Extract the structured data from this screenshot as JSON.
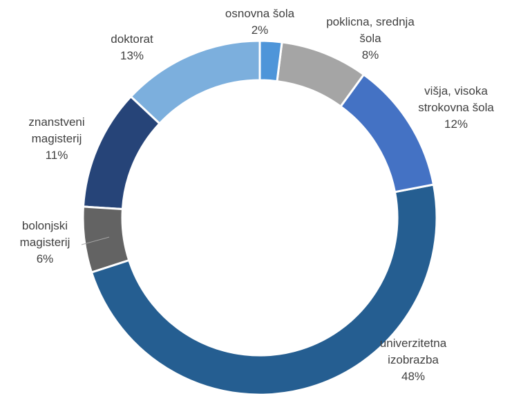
{
  "chart_data": {
    "type": "donut",
    "categories": [
      "osnovna šola",
      "poklicna, srednja šola",
      "višja, visoka strokovna šola",
      "univerzitetna izobrazba",
      "bolonjski magisterij",
      "znanstveni magisterij",
      "doktorat"
    ],
    "values": [
      2,
      8,
      12,
      48,
      6,
      11,
      13
    ],
    "value_labels": [
      "2%",
      "8%",
      "12%",
      "48%",
      "6%",
      "11%",
      "13%"
    ],
    "colors": [
      "#4e95d9",
      "#a5a5a5",
      "#4472c4",
      "#255e91",
      "#636363",
      "#264478",
      "#7cafdd"
    ]
  }
}
